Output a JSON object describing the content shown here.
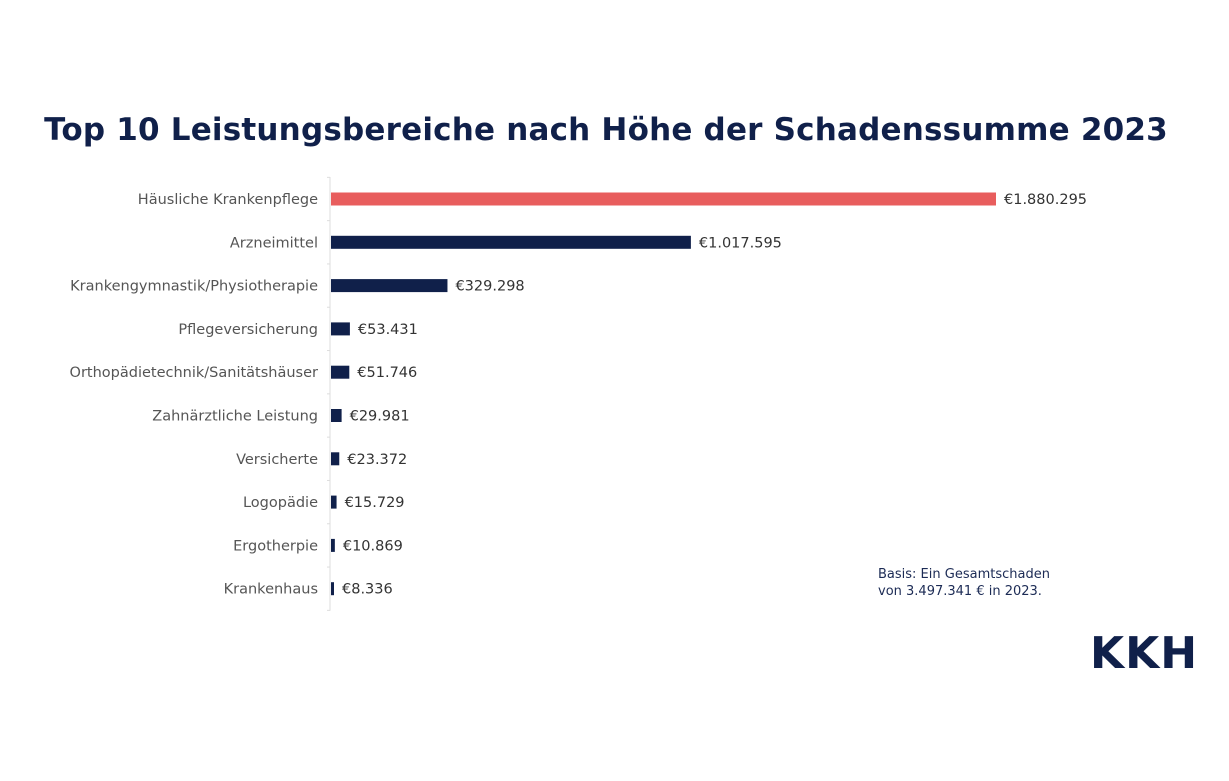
{
  "chart_data": {
    "type": "bar",
    "orientation": "horizontal",
    "title": "Top 10 Leistungsbereiche nach Höhe der Schadenssumme 2023",
    "xlabel": "",
    "ylabel": "",
    "grid": false,
    "categories": [
      "Häusliche Krankenpflege",
      "Arzneimittel",
      "Krankengymnastik/Physiotherapie",
      "Pflegeversicherung",
      "Orthopädietechnik/Sanitätshäuser",
      "Zahnärztliche Leistung",
      "Versicherte",
      "Logopädie",
      "Ergotherpie",
      "Krankenhaus"
    ],
    "values": [
      1880295,
      1017595,
      329298,
      53431,
      51746,
      29981,
      23372,
      15729,
      10869,
      8336
    ],
    "value_labels": [
      "€1.880.295",
      "€1.017.595",
      "€329.298",
      "€53.431",
      "€51.746",
      "€29.981",
      "€23.372",
      "€15.729",
      "€10.869",
      "€8.336"
    ],
    "highlight_index": 0,
    "colors": {
      "highlight": "#e85d5d",
      "default": "#10204a",
      "label": "#555555",
      "value_label": "#333333",
      "axis": "#dddddd"
    }
  },
  "note": {
    "line1": "Basis: Ein Gesamtschaden",
    "line2": "von 3.497.341 € in 2023."
  },
  "logo": {
    "text": "KKH"
  }
}
